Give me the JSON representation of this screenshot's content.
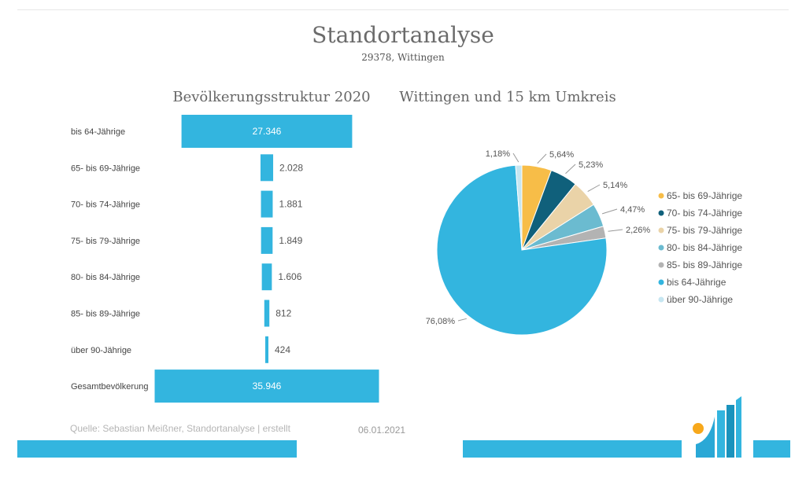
{
  "header": {
    "title": "Standortanalyse",
    "subtitle": "29378, Wittingen"
  },
  "chart_data": [
    {
      "type": "bar",
      "orientation": "horizontal",
      "title": "Bevölkerungsstruktur 2020",
      "categories": [
        "bis 64-Jährige",
        "65- bis 69-Jährige",
        "70- bis 74-Jährige",
        "75- bis 79-Jährige",
        "80- bis 84-Jährige",
        "85- bis 89-Jährige",
        "über 90-Jährige",
        "Gesamtbevölkerung"
      ],
      "values": [
        27346,
        2028,
        1881,
        1849,
        1606,
        812,
        424,
        35946
      ],
      "value_labels": [
        "27.346",
        "2.028",
        "1.881",
        "1.849",
        "1.606",
        "812",
        "424",
        "35.946"
      ],
      "color": "#33b5df"
    },
    {
      "type": "pie",
      "title": "Wittingen und 15 km Umkreis",
      "slices": [
        {
          "name": "65- bis 69-Jährige",
          "value": 5.64,
          "label": "5,64%",
          "color": "#f7bd48"
        },
        {
          "name": "70- bis 74-Jährige",
          "value": 5.23,
          "label": "5,23%",
          "color": "#10607b"
        },
        {
          "name": "75- bis 79-Jährige",
          "value": 5.14,
          "label": "5,14%",
          "color": "#ead3a8"
        },
        {
          "name": "80- bis 84-Jährige",
          "value": 4.47,
          "label": "4,47%",
          "color": "#6bbbd0"
        },
        {
          "name": "85- bis 89-Jährige",
          "value": 2.26,
          "label": "2,26%",
          "color": "#b3b3b3"
        },
        {
          "name": "bis 64-Jährige",
          "value": 76.08,
          "label": "76,08%",
          "color": "#33b5df"
        },
        {
          "name": "über 90-Jährige",
          "value": 1.18,
          "label": "1,18%",
          "color": "#c6e6f1"
        }
      ],
      "legend_position": "right"
    }
  ],
  "footer": {
    "source": "Quelle: Sebastian Meißner, Standortanalyse | erstellt",
    "date": "06.01.2021"
  },
  "logo": {
    "name": "standortanalyse-logo",
    "colors": [
      "#f7a81b",
      "#33b5df",
      "#1a93bd"
    ]
  }
}
